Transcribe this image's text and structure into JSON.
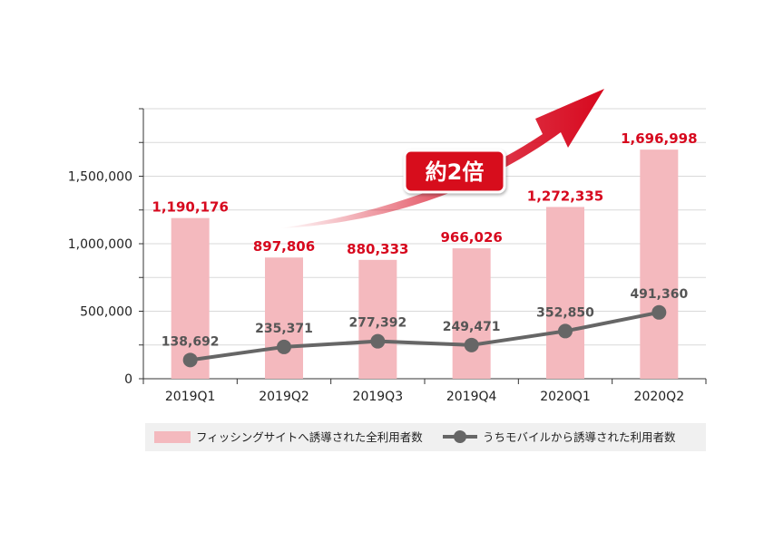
{
  "chart_data": {
    "type": "bar",
    "categories": [
      "2019Q1",
      "2019Q2",
      "2019Q3",
      "2019Q4",
      "2020Q1",
      "2020Q2"
    ],
    "series": [
      {
        "name": "フィッシングサイトへ誘導された全利用者数",
        "kind": "bar",
        "values": [
          1190176,
          897806,
          880333,
          966026,
          1272335,
          1696998
        ],
        "labels": [
          "1,190,176",
          "897,806",
          "880,333",
          "966,026",
          "1,272,335",
          "1,696,998"
        ],
        "color": "#f4b9be",
        "label_color": "#d7081e"
      },
      {
        "name": "うちモバイルから誘導された利用者数",
        "kind": "line",
        "values": [
          138692,
          235371,
          277392,
          249471,
          352850,
          491360
        ],
        "labels": [
          "138,692",
          "235,371",
          "277,392",
          "249,471",
          "352,850",
          "491,360"
        ],
        "color": "#666666"
      }
    ],
    "y_ticks": [
      {
        "value": 0,
        "label": "0"
      },
      {
        "value": 500000,
        "label": "500,000"
      },
      {
        "value": 1000000,
        "label": "1,000,000"
      },
      {
        "value": 1500000,
        "label": "1,500,000"
      }
    ],
    "ylim": [
      0,
      2000000
    ],
    "grid": true,
    "legend_position": "bottom",
    "annotation": {
      "text": "約2倍",
      "color": "#d7081e"
    }
  }
}
